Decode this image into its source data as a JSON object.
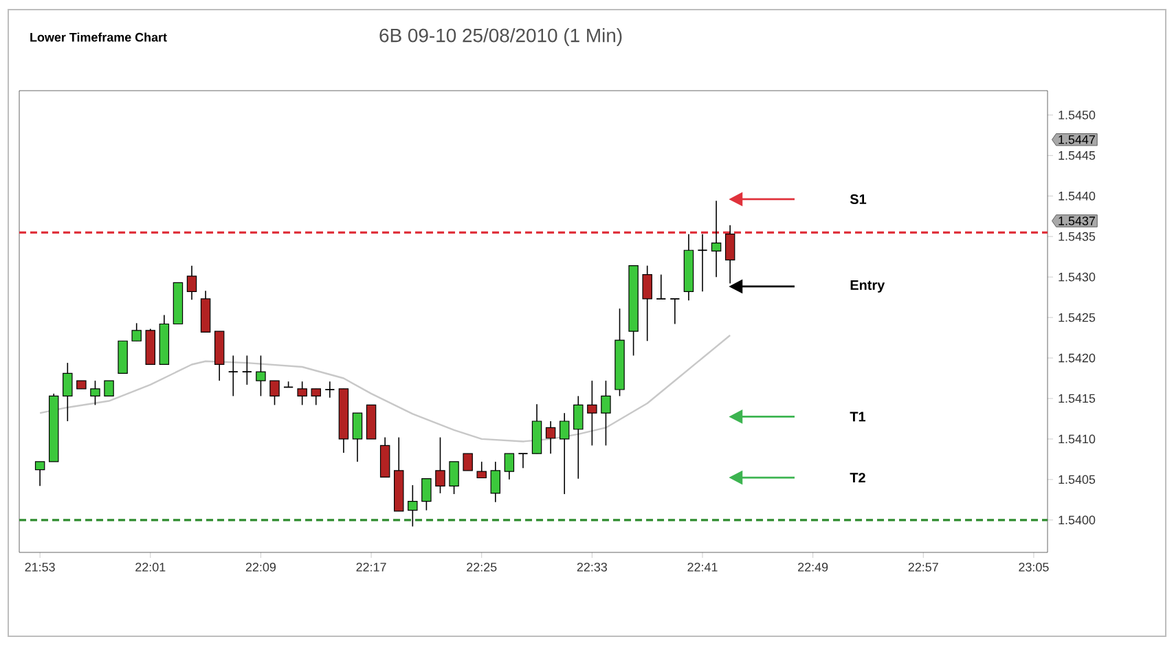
{
  "chart_data": {
    "type": "candlestick",
    "title": "Lower Timeframe Chart",
    "subtitle": "6B 09-10  25/08/2010 (1 Min)",
    "x": [
      21.883333,
      21.9,
      21.916667,
      21.933333,
      21.95,
      21.966667,
      21.983333,
      22,
      22.016667,
      22.033333,
      22.05,
      22.066667,
      22.083333,
      22.1,
      22.116667,
      22.133333,
      22.15,
      22.166667,
      22.183333,
      22.2,
      22.216667,
      22.233333,
      22.25,
      22.266667,
      22.283333,
      22.3,
      22.316667,
      22.333333,
      22.35,
      22.366667,
      22.383333,
      22.4,
      22.416667,
      22.433333,
      22.45,
      22.466667,
      22.483333,
      22.5,
      22.516667,
      22.533333,
      22.55,
      22.566667,
      22.583333,
      22.6,
      22.616667,
      22.633333,
      22.65,
      22.666667,
      22.683333,
      22.7,
      22.716667
    ],
    "ohlc": [
      [
        1.54062,
        1.54072,
        1.54042,
        1.54072
      ],
      [
        1.54072,
        1.54156,
        1.54072,
        1.54153
      ],
      [
        1.54153,
        1.54194,
        1.54122,
        1.54181
      ],
      [
        1.54172,
        1.54172,
        1.54162,
        1.54162
      ],
      [
        1.54153,
        1.54172,
        1.54142,
        1.54162
      ],
      [
        1.54153,
        1.54172,
        1.54153,
        1.54172
      ],
      [
        1.54181,
        1.54221,
        1.54181,
        1.54221
      ],
      [
        1.54221,
        1.54243,
        1.54221,
        1.54234
      ],
      [
        1.54234,
        1.54236,
        1.54192,
        1.54192
      ],
      [
        1.54192,
        1.54253,
        1.54192,
        1.54242
      ],
      [
        1.54242,
        1.54293,
        1.54242,
        1.54293
      ],
      [
        1.54301,
        1.54314,
        1.54272,
        1.54282
      ],
      [
        1.54273,
        1.54283,
        1.54232,
        1.54232
      ],
      [
        1.54233,
        1.54233,
        1.54172,
        1.54192
      ],
      [
        1.54183,
        1.54203,
        1.54153,
        1.54183
      ],
      [
        1.54183,
        1.54203,
        1.54167,
        1.54183
      ],
      [
        1.54172,
        1.54203,
        1.54153,
        1.54183
      ],
      [
        1.54172,
        1.54172,
        1.54142,
        1.54153
      ],
      [
        1.54164,
        1.54171,
        1.54164,
        1.54164
      ],
      [
        1.54162,
        1.54171,
        1.54142,
        1.54153
      ],
      [
        1.54162,
        1.54162,
        1.54142,
        1.54153
      ],
      [
        1.54161,
        1.54171,
        1.54151,
        1.54161
      ],
      [
        1.54162,
        1.54162,
        1.54083,
        1.541
      ],
      [
        1.541,
        1.54132,
        1.54072,
        1.54132
      ],
      [
        1.54142,
        1.54142,
        1.541,
        1.541
      ],
      [
        1.54092,
        1.54102,
        1.54053,
        1.54053
      ],
      [
        1.54061,
        1.54102,
        1.54011,
        1.54011
      ],
      [
        1.54012,
        1.54043,
        1.53992,
        1.54023
      ],
      [
        1.54023,
        1.54051,
        1.54012,
        1.54051
      ],
      [
        1.54061,
        1.54102,
        1.54033,
        1.54042
      ],
      [
        1.54042,
        1.54072,
        1.54032,
        1.54072
      ],
      [
        1.54082,
        1.54082,
        1.54061,
        1.54061
      ],
      [
        1.5406,
        1.54072,
        1.54052,
        1.54052
      ],
      [
        1.54033,
        1.54072,
        1.54022,
        1.54061
      ],
      [
        1.5406,
        1.54082,
        1.5405,
        1.54082
      ],
      [
        1.54082,
        1.54082,
        1.54064,
        1.54082
      ],
      [
        1.54082,
        1.54143,
        1.54082,
        1.54122
      ],
      [
        1.54114,
        1.54122,
        1.54082,
        1.54101
      ],
      [
        1.541,
        1.54132,
        1.54032,
        1.54122
      ],
      [
        1.54112,
        1.54153,
        1.54051,
        1.54142
      ],
      [
        1.54142,
        1.54172,
        1.54092,
        1.54132
      ],
      [
        1.54132,
        1.54172,
        1.54092,
        1.54153
      ],
      [
        1.54161,
        1.54261,
        1.54153,
        1.54222
      ],
      [
        1.54233,
        1.54314,
        1.54203,
        1.54314
      ],
      [
        1.54303,
        1.54314,
        1.54221,
        1.54273
      ],
      [
        1.54273,
        1.54303,
        1.54273,
        1.54273
      ],
      [
        1.54273,
        1.54273,
        1.54242,
        1.54273
      ],
      [
        1.54282,
        1.54353,
        1.54271,
        1.54333
      ],
      [
        1.54333,
        1.54353,
        1.54282,
        1.54333
      ],
      [
        1.54332,
        1.54394,
        1.543,
        1.54342
      ],
      [
        1.54353,
        1.54364,
        1.54292,
        1.54321
      ]
    ],
    "colors": [
      "#3cc83c",
      "#3cc83c",
      "#3cc83c",
      "#b22222",
      "#3cc83c",
      "#3cc83c",
      "#3cc83c",
      "#3cc83c",
      "#b22222",
      "#3cc83c",
      "#3cc83c",
      "#b22222",
      "#b22222",
      "#b22222",
      "#000000",
      "#000000",
      "#3cc83c",
      "#b22222",
      "#000000",
      "#b22222",
      "#b22222",
      "#000000",
      "#b22222",
      "#3cc83c",
      "#b22222",
      "#b22222",
      "#b22222",
      "#3cc83c",
      "#3cc83c",
      "#b22222",
      "#3cc83c",
      "#b22222",
      "#b22222",
      "#3cc83c",
      "#3cc83c",
      "#000000",
      "#3cc83c",
      "#b22222",
      "#3cc83c",
      "#3cc83c",
      "#b22222",
      "#3cc83c",
      "#3cc83c",
      "#3cc83c",
      "#b22222",
      "#000000",
      "#000000",
      "#3cc83c",
      "#000000",
      "#3cc83c",
      "#b22222"
    ],
    "series": [
      {
        "type": "line",
        "color": "#c8c8c8",
        "x": [
          21.883333,
          21.916667,
          21.966667,
          22.016667,
          22.066667,
          22.083333,
          22.133333,
          22.2,
          22.25,
          22.283333,
          22.333333,
          22.383333,
          22.416667,
          22.466667,
          22.5,
          22.533333,
          22.566667,
          22.616667,
          22.65,
          22.683333,
          22.716667
        ],
        "values": [
          1.54132,
          1.54139,
          1.54147,
          1.54167,
          1.54192,
          1.54196,
          1.54194,
          1.54189,
          1.54175,
          1.54156,
          1.54131,
          1.54111,
          1.541,
          1.54097,
          1.541,
          1.54106,
          1.54114,
          1.54144,
          1.54172,
          1.542,
          1.54228
        ]
      }
    ],
    "xlim": [
      21.858333,
      23.1
    ],
    "ylim": [
      1.5396,
      1.5453
    ],
    "xticks": [
      {
        "value": 21.883333,
        "label": "21:53"
      },
      {
        "value": 22.016667,
        "label": "22:01"
      },
      {
        "value": 22.15,
        "label": "22:09"
      },
      {
        "value": 22.283333,
        "label": "22:17"
      },
      {
        "value": 22.416667,
        "label": "22:25"
      },
      {
        "value": 22.55,
        "label": "22:33"
      },
      {
        "value": 22.683333,
        "label": "22:41"
      },
      {
        "value": 22.816667,
        "label": "22:49"
      },
      {
        "value": 22.95,
        "label": "22:57"
      },
      {
        "value": 23.083333,
        "label": "23:05"
      }
    ],
    "yticks": [
      {
        "value": 1.54,
        "label": "1.5400"
      },
      {
        "value": 1.5405,
        "label": "1.5405"
      },
      {
        "value": 1.541,
        "label": "1.5410"
      },
      {
        "value": 1.5415,
        "label": "1.5415"
      },
      {
        "value": 1.542,
        "label": "1.5420"
      },
      {
        "value": 1.5425,
        "label": "1.5425"
      },
      {
        "value": 1.543,
        "label": "1.5430"
      },
      {
        "value": 1.5435,
        "label": "1.5435"
      },
      {
        "value": 1.544,
        "label": "1.5440"
      },
      {
        "value": 1.5445,
        "label": "1.5445"
      },
      {
        "value": 1.545,
        "label": "1.5450"
      }
    ],
    "ref_lines": [
      {
        "axis": "y",
        "value": 1.54355,
        "color": "#e0323c",
        "line_style": "dashed"
      },
      {
        "axis": "y",
        "value": 1.54,
        "color": "#2e8b2e",
        "line_style": "dashed"
      }
    ],
    "annotations": [
      "S1",
      "Entry",
      "T1",
      "T2",
      "1.5447",
      "1.5437"
    ]
  }
}
